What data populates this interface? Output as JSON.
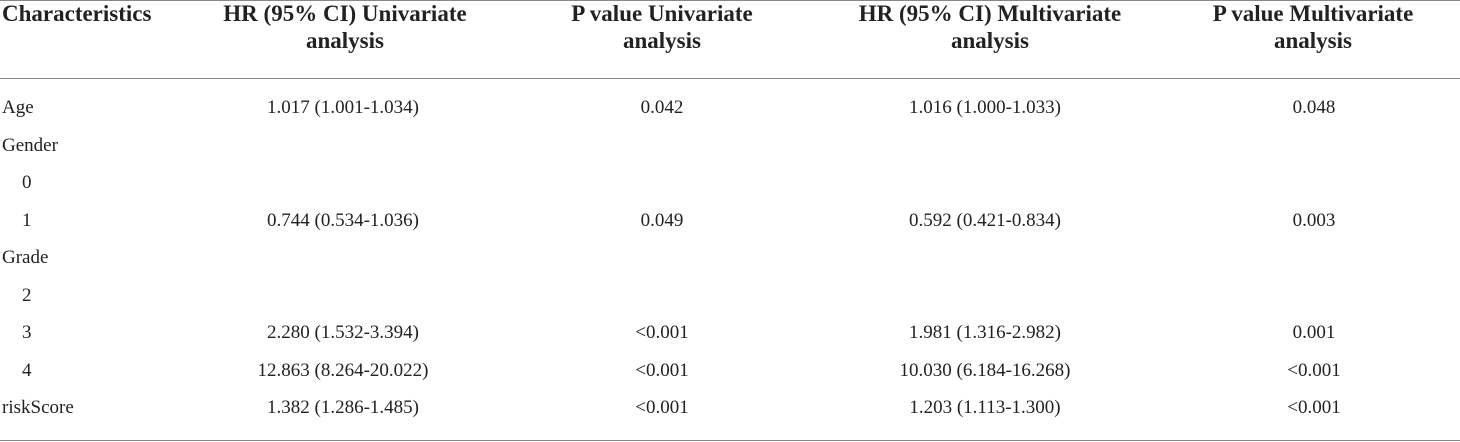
{
  "table": {
    "header": [
      "Characteristics",
      "HR (95% CI) Univariate analysis",
      "P value Univariate analysis",
      "HR (95% CI) Multivariate analysis",
      "P value Multivariate analysis"
    ],
    "rows": [
      [
        "Age",
        "1.017 (1.001-1.034)",
        "0.042",
        "1.016 (1.000-1.033)",
        "0.048"
      ],
      [
        "Gender",
        null,
        null,
        null,
        null
      ],
      [
        "0",
        null,
        null,
        null,
        null
      ],
      [
        "1",
        "0.744 (0.534-1.036)",
        "0.049",
        "0.592 (0.421-0.834)",
        "0.003"
      ],
      [
        "Grade",
        null,
        null,
        null,
        null
      ],
      [
        "2",
        null,
        null,
        null,
        null
      ],
      [
        "3",
        "2.280 (1.532-3.394)",
        "<0.001",
        "1.981 (1.316-2.982)",
        "0.001"
      ],
      [
        "4",
        "12.863 (8.264-20.022)",
        "<0.001",
        "10.030 (6.184-16.268)",
        "<0.001"
      ],
      [
        "riskScore",
        "1.382 (1.286-1.485)",
        "<0.001",
        "1.203 (1.113-1.300)",
        "<0.001"
      ]
    ]
  }
}
